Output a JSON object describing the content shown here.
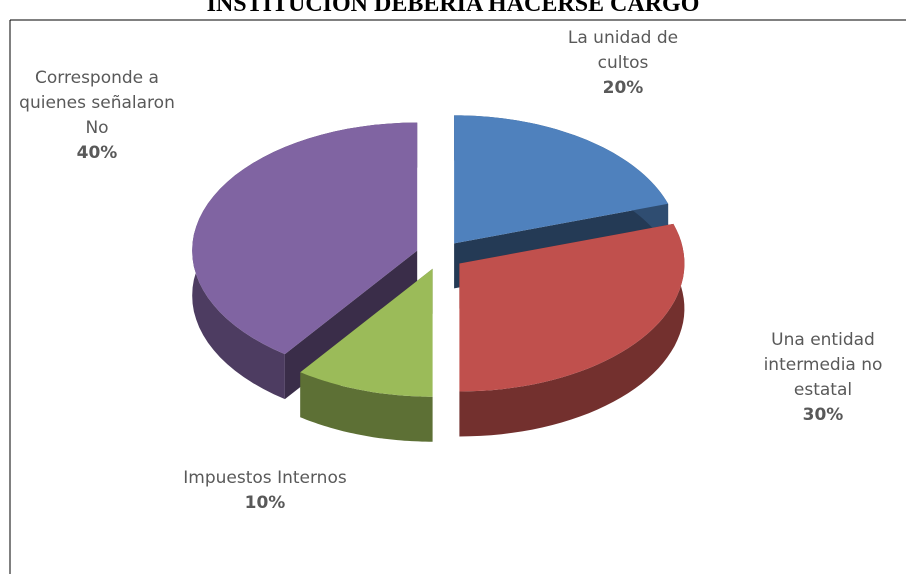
{
  "chart_data": {
    "type": "pie3d",
    "title": "INSTITUCION DEBERIA HACERSE CARGO",
    "categories": [
      "La unidad de cultos",
      "Una entidad intermedia no estatal",
      "Impuestos Internos",
      "Corresponde a quienes señalaron No"
    ],
    "values": [
      20,
      30,
      10,
      40
    ],
    "value_labels": [
      "20%",
      "30%",
      "10%",
      "40%"
    ],
    "colors": [
      "#4f81bd",
      "#c0504d",
      "#9bbb59",
      "#8064a2"
    ]
  }
}
